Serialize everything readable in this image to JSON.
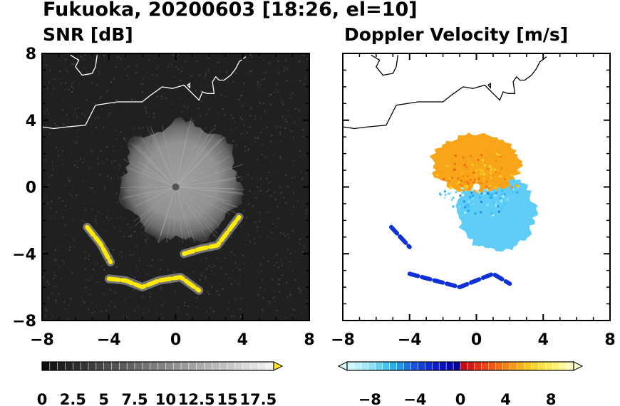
{
  "title": "Fukuoka, 20200603 [18:26, el=10]",
  "chart_data": [
    {
      "type": "heatmap",
      "title": "SNR [dB]",
      "xlim": [
        -8,
        8
      ],
      "ylim": [
        -8,
        8
      ],
      "xticks": [
        "−8",
        "−4",
        "0",
        "4",
        "8"
      ],
      "yticks": [
        "8",
        "4",
        "0",
        "−4",
        "−8"
      ],
      "colorbar": {
        "min": 0,
        "max": 18.75,
        "step": 0.625,
        "tick_values": [
          0,
          2.5,
          5,
          7.5,
          10,
          12.5,
          15,
          17.5
        ],
        "tick_labels": [
          "0",
          "2.5",
          "5",
          "7.5",
          "10",
          "12.5",
          "15",
          "17.5"
        ],
        "extend": "max",
        "over_color": "#ffea00"
      },
      "background_color": "#202020",
      "radar_site": [
        0,
        0
      ],
      "echo_regions": [
        {
          "name": "central-echo",
          "center": [
            0.3,
            0.3
          ],
          "radius_km": 3.8,
          "value_db": 8
        },
        {
          "name": "strong-band-sw",
          "path": [
            [
              -5.3,
              -2.4
            ],
            [
              -4.5,
              -3.4
            ],
            [
              -3.9,
              -4.5
            ]
          ],
          "value_db": "over"
        },
        {
          "name": "strong-band-s",
          "path": [
            [
              -4,
              -5.5
            ],
            [
              -3,
              -5.6
            ],
            [
              -2,
              -6
            ],
            [
              -1,
              -5.6
            ],
            [
              0.3,
              -5.4
            ],
            [
              1.4,
              -6.2
            ]
          ],
          "value_db": "over"
        },
        {
          "name": "strong-band-se",
          "path": [
            [
              0.5,
              -4
            ],
            [
              1.5,
              -3.7
            ],
            [
              2.5,
              -3.5
            ],
            [
              3.8,
              -1.8
            ]
          ],
          "value_db": "over"
        }
      ]
    },
    {
      "type": "heatmap",
      "title": "Doppler Velocity [m/s]",
      "xlim": [
        -8,
        8
      ],
      "ylim": [
        -8,
        8
      ],
      "xticks": [
        "−8",
        "−4",
        "0",
        "4",
        "8"
      ],
      "yticks": [],
      "colorbar": {
        "min": -10,
        "max": 10,
        "step": 0.625,
        "tick_values": [
          -8,
          -4,
          0,
          4,
          8
        ],
        "tick_labels": [
          "−8",
          "−4",
          "0",
          "4",
          "8"
        ],
        "extend": "both"
      },
      "echo_regions": [
        {
          "name": "receding-north",
          "center": [
            0,
            1.4
          ],
          "radius_km": 2.9,
          "value_ms": 5
        },
        {
          "name": "approaching-south",
          "center": [
            1.2,
            -1.5
          ],
          "radius_km": 2.5,
          "value_ms": -7
        },
        {
          "name": "approaching-band-sw",
          "path": [
            [
              -5.1,
              -2.4
            ],
            [
              -4,
              -3.6
            ]
          ],
          "value_ms": -3
        },
        {
          "name": "approaching-band-s",
          "path": [
            [
              -4,
              -5.2
            ],
            [
              -2.5,
              -5.6
            ],
            [
              -1,
              -6
            ],
            [
              1,
              -5.2
            ],
            [
              2,
              -5.8
            ]
          ],
          "value_ms": -3
        }
      ]
    }
  ],
  "coastline_km": [
    [
      [
        -8,
        3.6
      ],
      [
        -7.3,
        3.5
      ],
      [
        -6.5,
        3.6
      ],
      [
        -5.4,
        3.7
      ],
      [
        -5,
        4.5
      ],
      [
        -4.8,
        4.9
      ],
      [
        -3.5,
        5.1
      ],
      [
        -2,
        5.1
      ],
      [
        -1.5,
        5.5
      ],
      [
        -0.8,
        6
      ],
      [
        -0.2,
        5.9
      ],
      [
        0.5,
        6.1
      ],
      [
        0.9,
        5.7
      ],
      [
        1.4,
        5.2
      ],
      [
        1.6,
        5.7
      ],
      [
        1.9,
        5.6
      ],
      [
        2.3,
        5.6
      ],
      [
        2.2,
        6.3
      ],
      [
        2.4,
        6.6
      ],
      [
        2.6,
        6.4
      ],
      [
        2.9,
        6.4
      ],
      [
        3.3,
        6.7
      ],
      [
        3.6,
        7.1
      ],
      [
        3.8,
        7.5
      ],
      [
        4.2,
        7.8
      ]
    ],
    [
      [
        -6.3,
        7.9
      ],
      [
        -5.8,
        7.6
      ],
      [
        -6,
        7.2
      ],
      [
        -5.6,
        6.7
      ],
      [
        -5,
        6.8
      ],
      [
        -4.8,
        7.2
      ],
      [
        -4.7,
        7.9
      ]
    ],
    [
      [
        0.7,
        6.1
      ],
      [
        0.85,
        6.2
      ],
      [
        0.85,
        5.95
      ],
      [
        0.7,
        6.1
      ]
    ]
  ]
}
